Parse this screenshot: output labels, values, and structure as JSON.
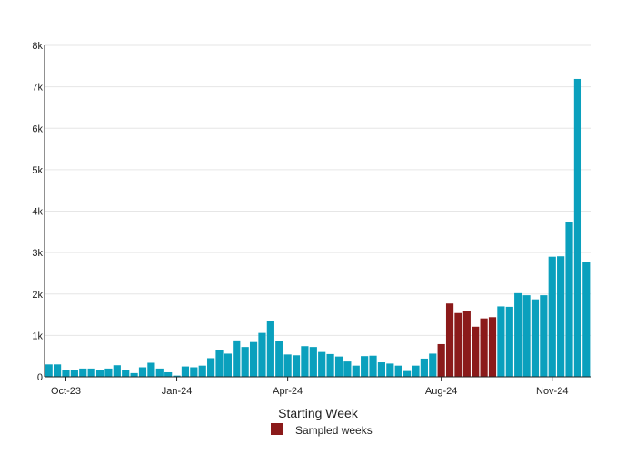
{
  "chart_data": {
    "type": "bar",
    "title": "",
    "xlabel": "Starting Week",
    "ylabel": "",
    "ylim": [
      0,
      8000
    ],
    "y_ticks": [
      0,
      1000,
      2000,
      3000,
      4000,
      5000,
      6000,
      7000,
      8000
    ],
    "y_tick_labels": [
      "0",
      "1k",
      "2k",
      "3k",
      "4k",
      "5k",
      "6k",
      "7k",
      "8k"
    ],
    "x_tick_labels": [
      {
        "label": "Oct-23",
        "week_index": 2
      },
      {
        "label": "Jan-24",
        "week_index": 15
      },
      {
        "label": "Apr-24",
        "week_index": 28
      },
      {
        "label": "Aug-24",
        "week_index": 46
      },
      {
        "label": "Nov-24",
        "week_index": 59
      }
    ],
    "grid": true,
    "legend": {
      "position": "bottom-center",
      "entries": [
        {
          "label": "Sampled weeks",
          "color": "#8b1a1a"
        }
      ]
    },
    "colors": {
      "default": "#0aa0bd",
      "sampled": "#8b1a1a"
    },
    "values": [
      300,
      300,
      170,
      160,
      200,
      200,
      170,
      200,
      280,
      160,
      90,
      230,
      340,
      200,
      110,
      30,
      250,
      230,
      270,
      450,
      650,
      560,
      880,
      720,
      840,
      1060,
      1350,
      860,
      540,
      520,
      740,
      720,
      600,
      550,
      490,
      370,
      270,
      500,
      510,
      350,
      320,
      270,
      140,
      270,
      440,
      560,
      790,
      1770,
      1540,
      1580,
      1210,
      1410,
      1440,
      1700,
      1690,
      2020,
      1970,
      1870,
      1970,
      2900,
      2910,
      3730,
      7190,
      2780
    ],
    "sampled_indices": [
      46,
      47,
      48,
      49,
      50,
      51,
      52
    ]
  }
}
